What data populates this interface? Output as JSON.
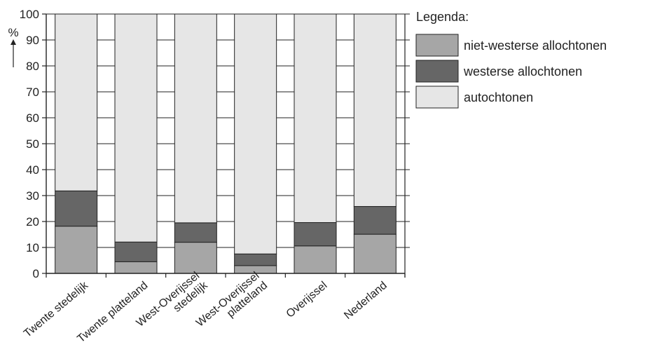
{
  "chart_data": {
    "type": "bar",
    "stacked": true,
    "title": "",
    "xlabel": "",
    "ylabel": "%",
    "ylim": [
      0,
      100
    ],
    "yticks": [
      "0",
      "10",
      "20",
      "30",
      "40",
      "50",
      "60",
      "70",
      "80",
      "90",
      "100"
    ],
    "categories": [
      [
        "Twente stedelijk"
      ],
      [
        "Twente platteland"
      ],
      [
        "West-Overijssel",
        "stedelijk"
      ],
      [
        "West-Overijssel",
        "platteland"
      ],
      [
        "Overijssel"
      ],
      [
        "Nederland"
      ]
    ],
    "series": [
      {
        "name": "niet-westerse allochtonen",
        "color": "#a6a6a6",
        "values": [
          18.2,
          4.5,
          12,
          3,
          10.6,
          15.1
        ]
      },
      {
        "name": "westerse allochtonen",
        "color": "#666666",
        "values": [
          13.6,
          7.6,
          7.5,
          4.5,
          9,
          10.7
        ]
      },
      {
        "name": "autochtonen",
        "color": "#e6e6e6",
        "values": [
          68.2,
          87.9,
          80.5,
          92.5,
          80.4,
          74.2
        ]
      }
    ],
    "grid": true,
    "legend": {
      "title": "Legenda:",
      "position": "right"
    }
  }
}
